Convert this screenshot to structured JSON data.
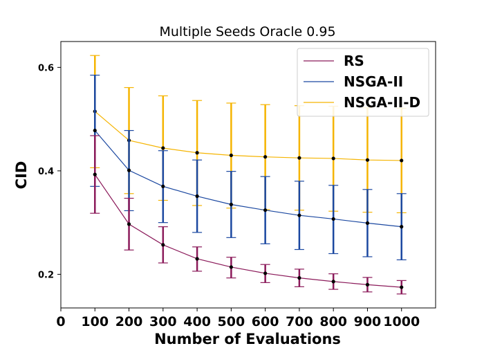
{
  "chart_data": {
    "type": "line",
    "title": "Multiple Seeds Oracle 0.95",
    "xlabel": "Number of Evaluations",
    "ylabel": "CID",
    "xlim": [
      0,
      1100
    ],
    "ylim": [
      0.135,
      0.65
    ],
    "x_ticks": [
      "0",
      "100",
      "200",
      "300",
      "400",
      "500",
      "600",
      "700",
      "800",
      "900",
      "1000"
    ],
    "x_tick_values": [
      0,
      100,
      200,
      300,
      400,
      500,
      600,
      700,
      800,
      900,
      1000
    ],
    "y_ticks": [
      "0.2",
      "0.4",
      "0.6"
    ],
    "y_tick_values": [
      0.2,
      0.4,
      0.6
    ],
    "legend_position": "top-right",
    "grid": false,
    "x": [
      100,
      200,
      300,
      400,
      500,
      600,
      700,
      800,
      900,
      1000
    ],
    "series": [
      {
        "name": "RS",
        "color": "#8b1a5a",
        "values": [
          0.393,
          0.297,
          0.257,
          0.23,
          0.214,
          0.202,
          0.193,
          0.186,
          0.18,
          0.175
        ],
        "err_low": [
          0.318,
          0.247,
          0.222,
          0.206,
          0.193,
          0.184,
          0.176,
          0.171,
          0.166,
          0.162
        ],
        "err_high": [
          0.468,
          0.347,
          0.292,
          0.253,
          0.233,
          0.219,
          0.21,
          0.201,
          0.194,
          0.188
        ]
      },
      {
        "name": "NSGA-II",
        "color": "#1a47a0",
        "values": [
          0.478,
          0.401,
          0.37,
          0.351,
          0.335,
          0.324,
          0.314,
          0.307,
          0.299,
          0.292
        ],
        "err_low": [
          0.37,
          0.323,
          0.3,
          0.281,
          0.271,
          0.259,
          0.248,
          0.24,
          0.234,
          0.228
        ],
        "err_high": [
          0.585,
          0.478,
          0.439,
          0.421,
          0.399,
          0.389,
          0.38,
          0.372,
          0.364,
          0.356
        ]
      },
      {
        "name": "NSGA-II-D",
        "color": "#f5b400",
        "values": [
          0.515,
          0.459,
          0.444,
          0.435,
          0.43,
          0.427,
          0.425,
          0.424,
          0.421,
          0.42
        ],
        "err_low": [
          0.406,
          0.356,
          0.343,
          0.333,
          0.328,
          0.325,
          0.324,
          0.322,
          0.32,
          0.319
        ],
        "err_high": [
          0.623,
          0.561,
          0.545,
          0.536,
          0.531,
          0.528,
          0.526,
          0.525,
          0.522,
          0.521
        ]
      }
    ]
  }
}
